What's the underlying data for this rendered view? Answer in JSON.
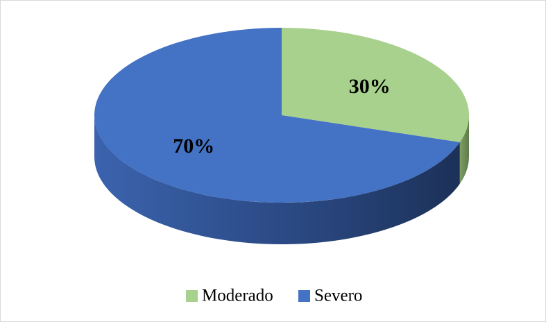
{
  "chart_data": {
    "type": "pie",
    "categories": [
      "Moderado",
      "Severo"
    ],
    "values": [
      30,
      70
    ],
    "value_labels": [
      "30%",
      "70%"
    ],
    "colors": [
      "#a9d18e",
      "#4472c4"
    ],
    "legend": "bottom"
  }
}
